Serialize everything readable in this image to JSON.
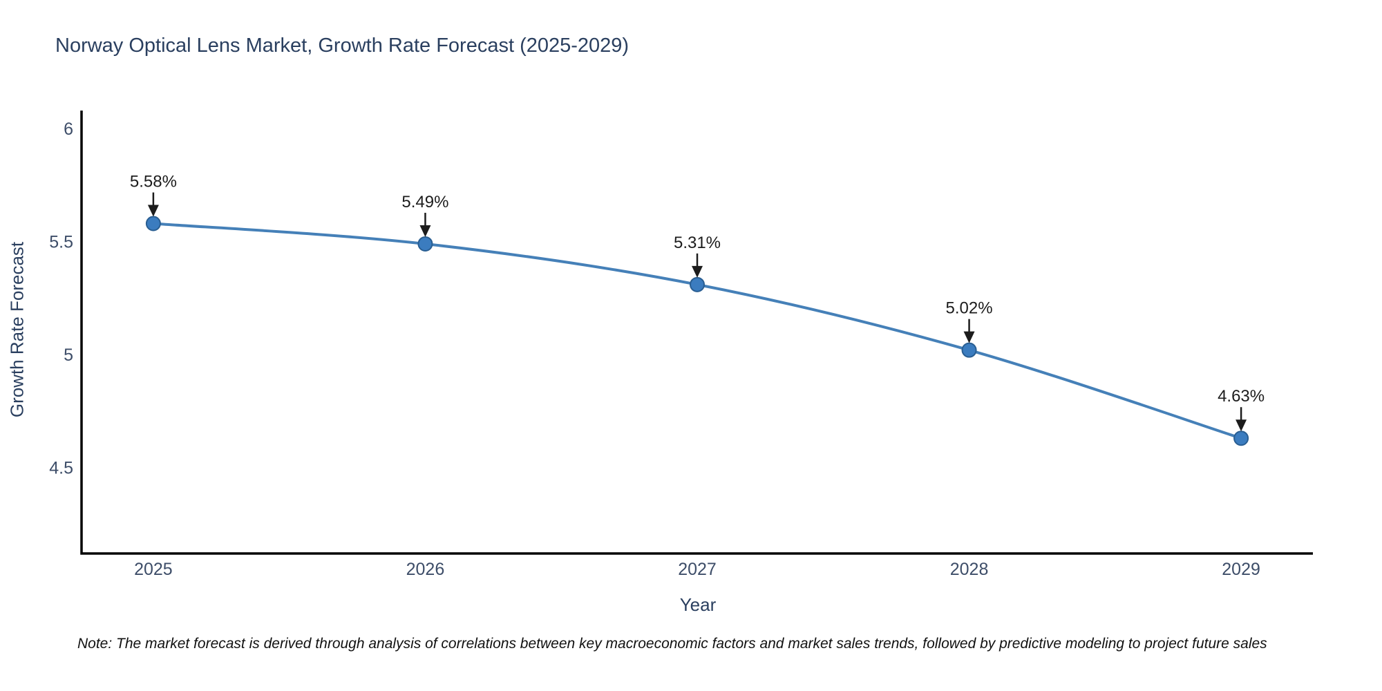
{
  "title": "Norway Optical Lens Market, Growth Rate Forecast (2025-2029)",
  "note": "Note: The market forecast is derived through analysis of correlations between key macroeconomic factors and market sales trends, followed by predictive modeling to project future sales",
  "chart_data": {
    "type": "line",
    "title": "Norway Optical Lens Market, Growth Rate Forecast (2025-2029)",
    "xlabel": "Year",
    "ylabel": "Growth Rate Forecast",
    "x": [
      2025,
      2026,
      2027,
      2028,
      2029
    ],
    "values": [
      5.58,
      5.49,
      5.31,
      5.02,
      4.63
    ],
    "point_labels": [
      "5.58%",
      "5.49%",
      "5.31%",
      "5.02%",
      "4.63%"
    ],
    "x_ticks": [
      "2025",
      "2026",
      "2027",
      "2028",
      "2029"
    ],
    "y_ticks": [
      6,
      5.5,
      5,
      4.5
    ],
    "xlim": [
      2024.736,
      2029.264
    ],
    "ylim": [
      4.12,
      6.08
    ],
    "grid": false,
    "line_shape": "spline",
    "legend": "none",
    "colors": {
      "line": "#4580b8",
      "marker_fill": "#3b7cbf",
      "marker_edge": "#295e92",
      "axis": "#000000",
      "annotation": "#1c1c1c",
      "tick_text": "#3d4d68",
      "title_text": "#2a3f5f"
    }
  }
}
